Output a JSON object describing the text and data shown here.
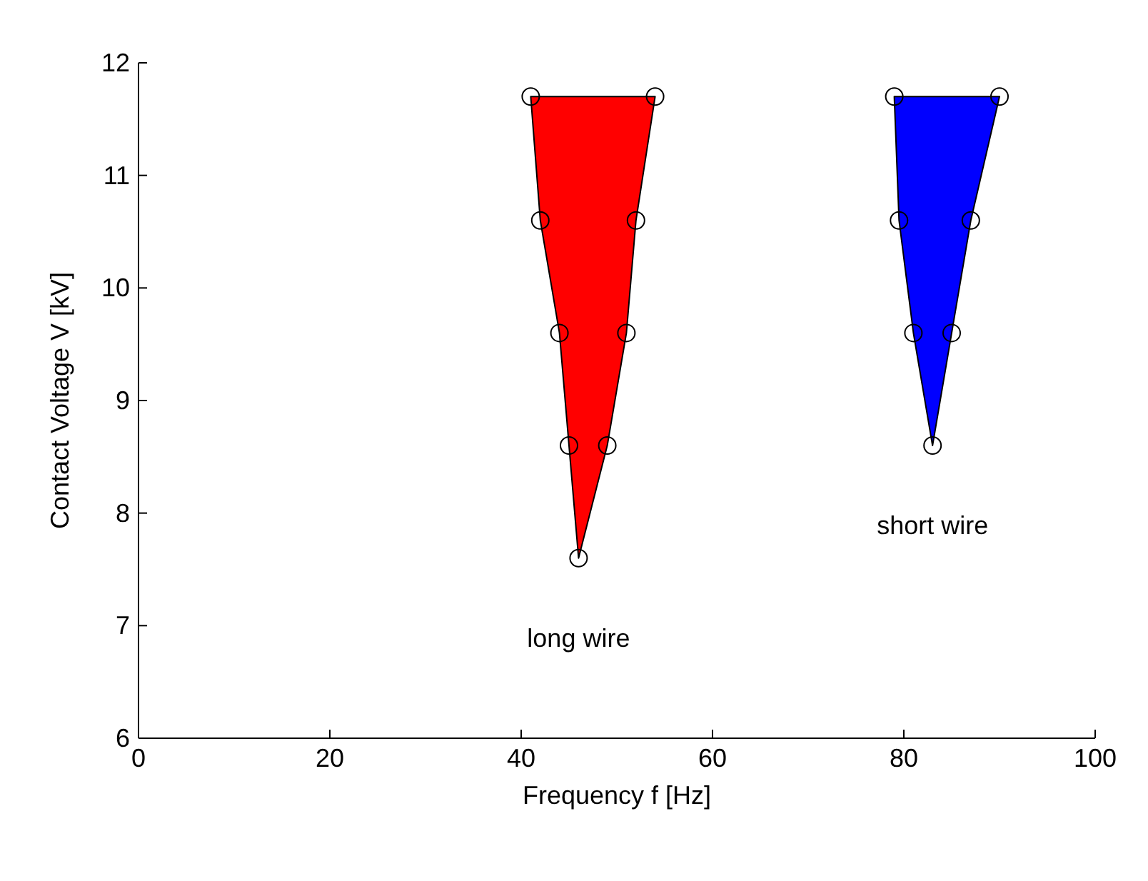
{
  "chart_data": {
    "type": "area",
    "xlabel": "Frequency f [Hz]",
    "ylabel": "Contact Voltage V [kV]",
    "xlim": [
      0,
      100
    ],
    "xticks": [
      0,
      20,
      40,
      60,
      80,
      100
    ],
    "ylim": [
      6,
      12
    ],
    "yticks": [
      6,
      7,
      8,
      9,
      10,
      11,
      12
    ],
    "grid": false,
    "marker": "circle",
    "series": [
      {
        "color": "#ff0000",
        "x": [
          41,
          42,
          44,
          45,
          46,
          49,
          51,
          52,
          54
        ],
        "values": [
          11.7,
          10.6,
          9.6,
          8.6,
          7.6,
          8.6,
          9.6,
          10.6,
          11.7
        ]
      },
      {
        "color": "#0000ff",
        "x": [
          79,
          79.5,
          81,
          83,
          85,
          87,
          90
        ],
        "values": [
          11.7,
          10.6,
          9.6,
          8.6,
          9.6,
          10.6,
          11.7
        ]
      }
    ],
    "annotations": [
      "long wire",
      "short wire"
    ]
  }
}
